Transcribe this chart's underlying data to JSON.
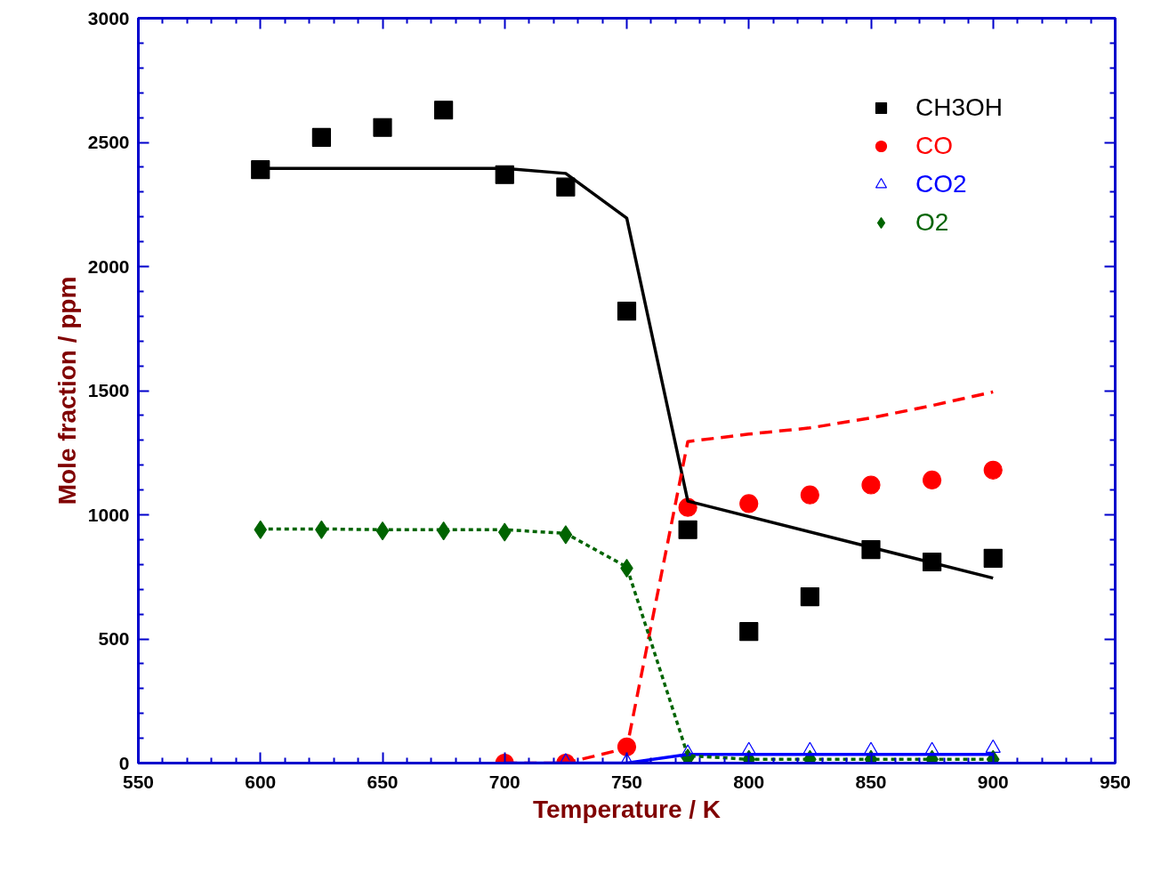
{
  "chart_data": {
    "type": "scatter",
    "xlabel": "Temperature / K",
    "ylabel": "Mole fraction / ppm",
    "xlim": [
      550,
      950
    ],
    "xticks": [
      550,
      600,
      650,
      700,
      750,
      800,
      850,
      900,
      950
    ],
    "ylim": [
      0,
      3000
    ],
    "yticks": [
      0,
      500,
      1000,
      1500,
      2000,
      2500,
      3000
    ],
    "grid": false,
    "legend": "top right",
    "series": [
      {
        "name": "CH3OH",
        "marker": "square",
        "color": "#000000",
        "x": [
          600,
          625,
          650,
          675,
          700,
          725,
          750,
          775,
          800,
          825,
          850,
          875,
          900
        ],
        "values": [
          2390,
          2520,
          2560,
          2630,
          2370,
          2320,
          1820,
          940,
          530,
          670,
          860,
          810,
          825
        ]
      },
      {
        "name": "CO",
        "marker": "circle",
        "color": "#ff0000",
        "x": [
          700,
          725,
          750,
          775,
          800,
          825,
          850,
          875,
          900
        ],
        "values": [
          0,
          0,
          65,
          1030,
          1045,
          1080,
          1120,
          1140,
          1180
        ]
      },
      {
        "name": "CO2",
        "marker": "triangle",
        "color": "#0000ff",
        "x": [
          725,
          750,
          775,
          800,
          825,
          850,
          875,
          900
        ],
        "values": [
          5,
          5,
          40,
          50,
          50,
          50,
          50,
          60
        ]
      },
      {
        "name": "O2",
        "marker": "diamond",
        "color": "#006400",
        "x": [
          600,
          625,
          650,
          675,
          700,
          725,
          750,
          775,
          800,
          825,
          850,
          875,
          900
        ],
        "values": [
          940,
          940,
          935,
          935,
          930,
          920,
          785,
          20,
          15,
          15,
          15,
          15,
          15
        ]
      },
      {
        "type": "line",
        "line_style": "solid",
        "color": "#000000",
        "x": [
          600,
          700,
          725,
          750,
          775,
          900
        ],
        "values": [
          2395,
          2395,
          2375,
          2195,
          1055,
          745
        ]
      },
      {
        "type": "line",
        "line_style": "dashed",
        "color": "#ff0000",
        "x": [
          700,
          725,
          750,
          775,
          800,
          825,
          850,
          875,
          900
        ],
        "values": [
          0,
          0,
          60,
          1295,
          1325,
          1350,
          1390,
          1440,
          1495
        ]
      },
      {
        "type": "line",
        "line_style": "solid",
        "color": "#0000ff",
        "x": [
          700,
          725,
          750,
          775,
          800,
          825,
          850,
          875,
          900
        ],
        "values": [
          0,
          0,
          0,
          35,
          35,
          35,
          35,
          35,
          35
        ]
      },
      {
        "type": "line",
        "line_style": "dotted",
        "color": "#006400",
        "x": [
          600,
          625,
          650,
          675,
          700,
          725,
          750,
          775,
          800,
          825,
          850,
          875,
          900
        ],
        "values": [
          943,
          943,
          940,
          940,
          940,
          925,
          790,
          30,
          15,
          15,
          15,
          15,
          15
        ]
      }
    ]
  }
}
